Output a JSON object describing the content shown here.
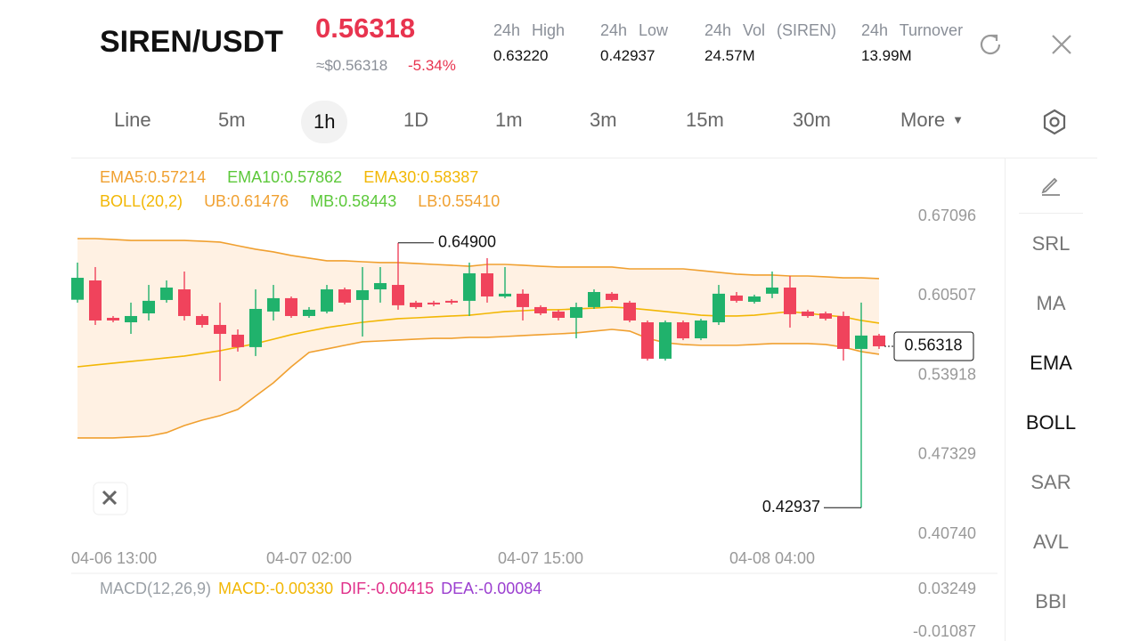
{
  "header": {
    "pair": "SIREN/USDT",
    "price": "0.56318",
    "usd_price": "≈$0.56318",
    "change": "-5.34%",
    "stats": [
      {
        "label": "24h High",
        "value": "0.63220"
      },
      {
        "label": "24h Low",
        "value": "0.42937"
      },
      {
        "label": "24h Vol (SIREN)",
        "value": "24.57M"
      },
      {
        "label": "24h Turnover",
        "value": "13.99M"
      }
    ]
  },
  "tabs": {
    "items": [
      "Line",
      "5m",
      "1h",
      "1D",
      "1m",
      "3m",
      "15m",
      "30m",
      "More"
    ],
    "selected": 2
  },
  "sidebar": {
    "items": [
      "SRL",
      "MA",
      "EMA",
      "BOLL",
      "SAR",
      "AVL",
      "BBI"
    ]
  },
  "chart_data": {
    "type": "candlestick",
    "legend": [
      [
        {
          "text": "EMA5:0.57214",
          "color": "#f0a030"
        },
        {
          "text": "EMA10:0.57862",
          "color": "#5cc83a"
        },
        {
          "text": "EMA30:0.58387",
          "color": "#f2b705"
        }
      ],
      [
        {
          "text": "BOLL(20,2)",
          "color": "#f2b705"
        },
        {
          "text": "UB:0.61476",
          "color": "#f0a030"
        },
        {
          "text": "MB:0.58443",
          "color": "#5cc83a"
        },
        {
          "text": "LB:0.55410",
          "color": "#f0a030"
        }
      ]
    ],
    "categories": [
      "04-06 13:00",
      null,
      null,
      null,
      null,
      null,
      null,
      null,
      null,
      null,
      null,
      null,
      null,
      "04-07 02:00",
      null,
      null,
      null,
      null,
      null,
      null,
      null,
      null,
      null,
      null,
      null,
      null,
      "04-07 15:00",
      null,
      null,
      null,
      null,
      null,
      null,
      null,
      null,
      null,
      null,
      null,
      null,
      "04-08 04:00",
      null,
      null,
      null,
      null,
      null,
      null
    ],
    "candles": {
      "open": [
        0.6018,
        0.6178,
        0.5868,
        0.5831,
        0.5905,
        0.6016,
        0.6104,
        0.5883,
        0.5809,
        0.5728,
        0.5625,
        0.592,
        0.6031,
        0.5883,
        0.592,
        0.6104,
        0.6016,
        0.6104,
        0.6141,
        0.5994,
        0.5994,
        0.6009,
        0.6009,
        0.6237,
        0.6045,
        0.6068,
        0.5957,
        0.592,
        0.5868,
        0.5957,
        0.6068,
        0.5994,
        0.5831,
        0.5529,
        0.5831,
        0.5698,
        0.5831,
        0.6053,
        0.6001,
        0.6068,
        0.6119,
        0.592,
        0.5905,
        0.5883,
        0.561,
        0.5721
      ],
      "high": [
        0.6326,
        0.6289,
        0.5883,
        0.5994,
        0.6141,
        0.6178,
        0.6252,
        0.5898,
        0.5994,
        0.5772,
        0.6104,
        0.6141,
        0.6045,
        0.5957,
        0.6141,
        0.6119,
        0.6289,
        0.6289,
        0.649,
        0.6009,
        0.6009,
        0.6023,
        0.6326,
        0.6363,
        0.6289,
        0.6104,
        0.5972,
        0.5935,
        0.5994,
        0.6104,
        0.6082,
        0.6009,
        0.5846,
        0.5846,
        0.5846,
        0.586,
        0.6141,
        0.6082,
        0.606,
        0.6252,
        0.6215,
        0.5935,
        0.592,
        0.592,
        0.5994,
        0.5735
      ],
      "low": [
        0.5994,
        0.5809,
        0.5831,
        0.5735,
        0.5846,
        0.5994,
        0.5846,
        0.5787,
        0.5344,
        0.5588,
        0.5551,
        0.5846,
        0.5868,
        0.5868,
        0.5905,
        0.5979,
        0.5713,
        0.5994,
        0.5935,
        0.5942,
        0.5964,
        0.5979,
        0.5883,
        0.5994,
        0.6031,
        0.5846,
        0.589,
        0.5846,
        0.5698,
        0.5942,
        0.6001,
        0.5831,
        0.5514,
        0.5514,
        0.5683,
        0.5683,
        0.5809,
        0.5994,
        0.5986,
        0.6031,
        0.5787,
        0.5868,
        0.5846,
        0.5514,
        0.42937,
        0.561
      ],
      "close": [
        0.62,
        0.5846,
        0.5846,
        0.5883,
        0.6009,
        0.6119,
        0.5883,
        0.5809,
        0.5735,
        0.5625,
        0.5942,
        0.6031,
        0.5883,
        0.5935,
        0.6104,
        0.5994,
        0.6097,
        0.6156,
        0.5972,
        0.5957,
        0.5979,
        0.5994,
        0.6237,
        0.6045,
        0.6068,
        0.5957,
        0.5905,
        0.5868,
        0.5957,
        0.6082,
        0.6016,
        0.5846,
        0.5529,
        0.5831,
        0.5698,
        0.5846,
        0.6068,
        0.6009,
        0.6045,
        0.6119,
        0.5898,
        0.5883,
        0.5861,
        0.561,
        0.5721,
        0.56318
      ]
    },
    "up_color": "#20b26c",
    "down_color": "#f0435c",
    "band_color": "#fff1e3",
    "overlays": [
      {
        "color": "#f0a030",
        "values": [
          0.6525,
          0.6525,
          0.6518,
          0.651,
          0.651,
          0.651,
          0.651,
          0.6503,
          0.6496,
          0.6466,
          0.6437,
          0.6415,
          0.6385,
          0.6363,
          0.6341,
          0.6341,
          0.6333,
          0.6326,
          0.6326,
          0.6319,
          0.6311,
          0.6304,
          0.6296,
          0.6311,
          0.6311,
          0.6304,
          0.6296,
          0.6289,
          0.6289,
          0.6289,
          0.6289,
          0.6274,
          0.6274,
          0.6274,
          0.6274,
          0.626,
          0.6245,
          0.623,
          0.6223,
          0.6223,
          0.6215,
          0.6215,
          0.6208,
          0.62,
          0.62,
          0.6193
        ]
      },
      {
        "color": "#f2b705",
        "values": [
          0.5462,
          0.5477,
          0.5492,
          0.5507,
          0.5521,
          0.5536,
          0.5551,
          0.5573,
          0.5595,
          0.5625,
          0.5654,
          0.5691,
          0.5728,
          0.5758,
          0.5787,
          0.5809,
          0.5831,
          0.5846,
          0.5861,
          0.5868,
          0.5876,
          0.5883,
          0.589,
          0.5905,
          0.592,
          0.5927,
          0.5935,
          0.5935,
          0.5942,
          0.5949,
          0.5957,
          0.5949,
          0.5935,
          0.592,
          0.5905,
          0.589,
          0.5883,
          0.5883,
          0.589,
          0.5905,
          0.592,
          0.5905,
          0.589,
          0.5876,
          0.5846,
          0.5824
        ]
      },
      {
        "color": "#f0a030",
        "values": [
          0.4872,
          0.4872,
          0.4872,
          0.4879,
          0.4887,
          0.4916,
          0.4975,
          0.502,
          0.5057,
          0.5108,
          0.5219,
          0.5329,
          0.5462,
          0.5581,
          0.561,
          0.564,
          0.5669,
          0.5676,
          0.5684,
          0.5691,
          0.5698,
          0.5698,
          0.5706,
          0.5706,
          0.5713,
          0.5721,
          0.5728,
          0.5735,
          0.5743,
          0.5758,
          0.5772,
          0.5758,
          0.5698,
          0.5662,
          0.5647,
          0.564,
          0.564,
          0.564,
          0.5647,
          0.5654,
          0.5654,
          0.5654,
          0.5647,
          0.5625,
          0.5588,
          0.5566
        ]
      }
    ],
    "ylim": [
      0.4074,
      0.67096
    ],
    "yticks": [
      0.67096,
      0.60507,
      0.53918,
      0.47329,
      {
        "value": 0.4074,
        "label": "0.40740"
      }
    ],
    "max_label": {
      "value": 0.649,
      "label": "0.64900"
    },
    "min_label": 0.42937,
    "last_price": 0.56318,
    "macd": {
      "legend": [
        {
          "text": "MACD(12,26,9)",
          "color": "#9aa0a6"
        },
        {
          "text": "MACD:-0.00330",
          "color": "#f2b705"
        },
        {
          "text": "DIF:-0.00415",
          "color": "#e0308a"
        },
        {
          "text": "DEA:-0.00084",
          "color": "#9b3fd0"
        }
      ],
      "yticks": [
        0.03249,
        -0.01087
      ]
    }
  }
}
